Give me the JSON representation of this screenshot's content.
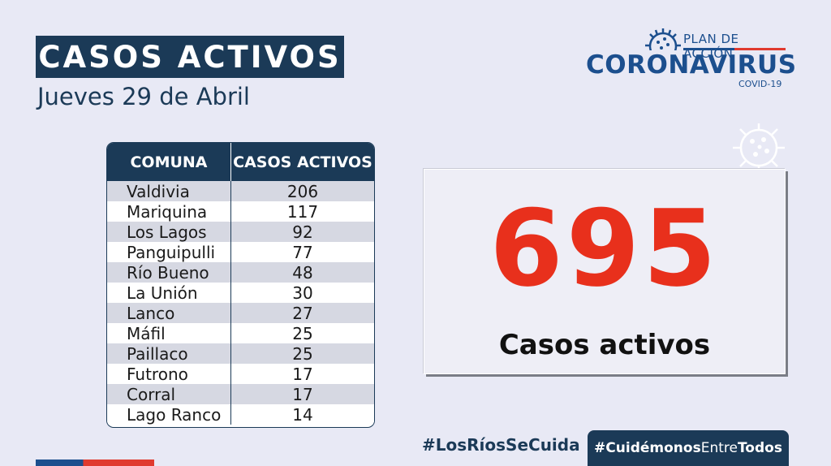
{
  "header": {
    "title": "CASOS ACTIVOS",
    "date": "Jueves 29 de Abril"
  },
  "logo": {
    "plan": "PLAN DE ACCIÓN",
    "main": "CORONAVIRUS",
    "sub": "COVID-19",
    "icon": "virus-icon"
  },
  "table": {
    "col_comuna": "COMUNA",
    "col_casos": "CASOS ACTIVOS",
    "rows": [
      {
        "comuna": "Valdivia",
        "casos": "206"
      },
      {
        "comuna": "Mariquina",
        "casos": "117"
      },
      {
        "comuna": "Los Lagos",
        "casos": "92"
      },
      {
        "comuna": "Panguipulli",
        "casos": "77"
      },
      {
        "comuna": "Río Bueno",
        "casos": "48"
      },
      {
        "comuna": "La Unión",
        "casos": "30"
      },
      {
        "comuna": "Lanco",
        "casos": "27"
      },
      {
        "comuna": "Máfil",
        "casos": "25"
      },
      {
        "comuna": "Paillaco",
        "casos": "25"
      },
      {
        "comuna": "Futrono",
        "casos": "17"
      },
      {
        "comuna": "Corral",
        "casos": "17"
      },
      {
        "comuna": "Lago Ranco",
        "casos": "14"
      }
    ]
  },
  "total": {
    "value": "695",
    "label": "Casos activos"
  },
  "footer": {
    "hashtag1": "#LosRíosSeCuida",
    "hashtag2_prefix": "#Cuidémonos",
    "hashtag2_mid": "Entre",
    "hashtag2_suffix": "Todos"
  },
  "colors": {
    "navy": "#1b3a57",
    "blue": "#1c4f8e",
    "red": "#e8301c",
    "background": "#e8e9f5"
  }
}
